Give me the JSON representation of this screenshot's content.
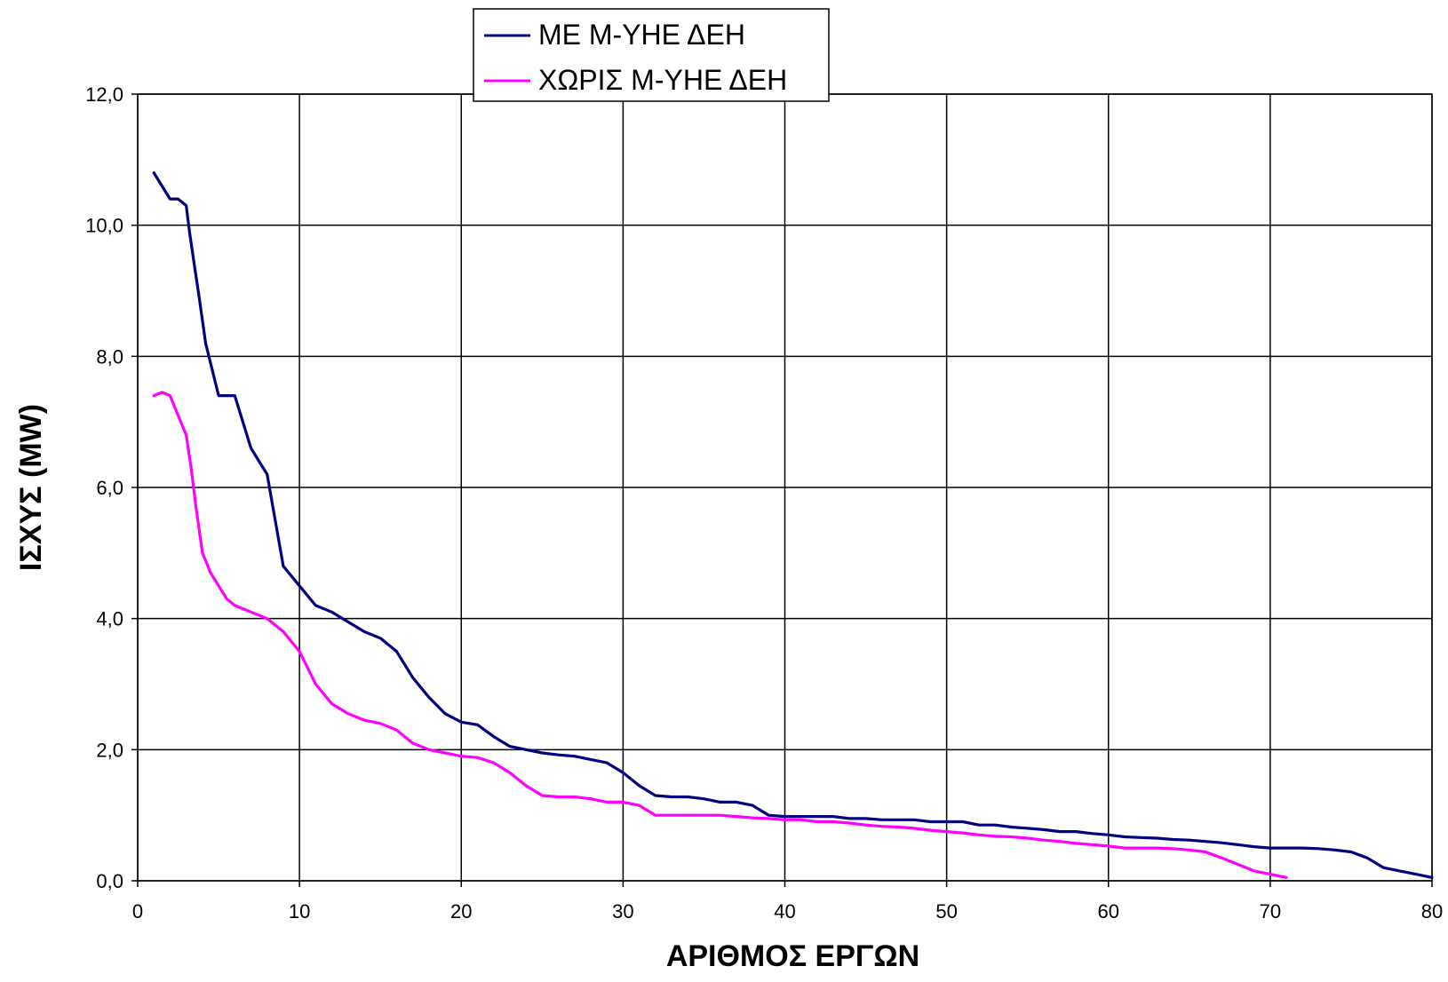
{
  "chart_data": {
    "type": "line",
    "title": "",
    "xlabel": "ΑΡΙΘΜΟΣ ΕΡΓΩΝ",
    "ylabel": "ΙΣΧΥΣ (MW)",
    "xlim": [
      0,
      80
    ],
    "ylim": [
      0,
      12
    ],
    "xticks": [
      0,
      10,
      20,
      30,
      40,
      50,
      60,
      70,
      80
    ],
    "xtick_labels": [
      "0",
      "10",
      "20",
      "30",
      "40",
      "50",
      "60",
      "70",
      "80"
    ],
    "yticks": [
      0,
      2,
      4,
      6,
      8,
      10,
      12
    ],
    "ytick_labels": [
      "0,0",
      "2,0",
      "4,0",
      "6,0",
      "8,0",
      "10,0",
      "12,0"
    ],
    "grid": true,
    "legend_position": "top",
    "series": [
      {
        "name": "ΜΕ Μ-ΥΗΕ ΔΕΗ",
        "color": "#000080",
        "points": [
          [
            1,
            10.8
          ],
          [
            1.5,
            10.6
          ],
          [
            2,
            10.4
          ],
          [
            2.5,
            10.4
          ],
          [
            3,
            10.3
          ],
          [
            3.2,
            9.9
          ],
          [
            3.5,
            9.4
          ],
          [
            3.8,
            8.9
          ],
          [
            4.2,
            8.2
          ],
          [
            4.6,
            7.8
          ],
          [
            5,
            7.4
          ],
          [
            5.5,
            7.4
          ],
          [
            6,
            7.4
          ],
          [
            6.5,
            7.0
          ],
          [
            7,
            6.6
          ],
          [
            7.5,
            6.4
          ],
          [
            8,
            6.2
          ],
          [
            8.5,
            5.5
          ],
          [
            9,
            4.8
          ],
          [
            10,
            4.5
          ],
          [
            11,
            4.2
          ],
          [
            12,
            4.1
          ],
          [
            13,
            3.95
          ],
          [
            14,
            3.8
          ],
          [
            15,
            3.7
          ],
          [
            16,
            3.5
          ],
          [
            17,
            3.1
          ],
          [
            18,
            2.8
          ],
          [
            19,
            2.55
          ],
          [
            20,
            2.42
          ],
          [
            21,
            2.38
          ],
          [
            22,
            2.2
          ],
          [
            23,
            2.05
          ],
          [
            24,
            2.0
          ],
          [
            25,
            1.95
          ],
          [
            26,
            1.92
          ],
          [
            27,
            1.9
          ],
          [
            28,
            1.85
          ],
          [
            29,
            1.8
          ],
          [
            30,
            1.65
          ],
          [
            31,
            1.45
          ],
          [
            32,
            1.3
          ],
          [
            33,
            1.28
          ],
          [
            34,
            1.28
          ],
          [
            35,
            1.25
          ],
          [
            36,
            1.2
          ],
          [
            37,
            1.2
          ],
          [
            38,
            1.15
          ],
          [
            39,
            1.0
          ],
          [
            40,
            0.98
          ],
          [
            41,
            0.98
          ],
          [
            42,
            0.98
          ],
          [
            43,
            0.98
          ],
          [
            44,
            0.95
          ],
          [
            45,
            0.95
          ],
          [
            46,
            0.93
          ],
          [
            47,
            0.93
          ],
          [
            48,
            0.93
          ],
          [
            49,
            0.9
          ],
          [
            50,
            0.9
          ],
          [
            51,
            0.9
          ],
          [
            52,
            0.85
          ],
          [
            53,
            0.85
          ],
          [
            54,
            0.82
          ],
          [
            55,
            0.8
          ],
          [
            56,
            0.78
          ],
          [
            57,
            0.75
          ],
          [
            58,
            0.75
          ],
          [
            59,
            0.72
          ],
          [
            60,
            0.7
          ],
          [
            61,
            0.67
          ],
          [
            62,
            0.66
          ],
          [
            63,
            0.65
          ],
          [
            64,
            0.63
          ],
          [
            65,
            0.62
          ],
          [
            66,
            0.6
          ],
          [
            67,
            0.58
          ],
          [
            68,
            0.55
          ],
          [
            69,
            0.52
          ],
          [
            70,
            0.5
          ],
          [
            71,
            0.5
          ],
          [
            72,
            0.5
          ],
          [
            73,
            0.49
          ],
          [
            74,
            0.47
          ],
          [
            75,
            0.44
          ],
          [
            76,
            0.35
          ],
          [
            77,
            0.2
          ],
          [
            78,
            0.15
          ],
          [
            79,
            0.1
          ],
          [
            80,
            0.05
          ]
        ]
      },
      {
        "name": "ΧΩΡΙΣ Μ-ΥΗΕ ΔΕΗ",
        "color": "#ff00ff",
        "points": [
          [
            1,
            7.4
          ],
          [
            1.5,
            7.45
          ],
          [
            2,
            7.4
          ],
          [
            2.5,
            7.1
          ],
          [
            3,
            6.8
          ],
          [
            3.3,
            6.3
          ],
          [
            3.6,
            5.7
          ],
          [
            4,
            5.0
          ],
          [
            4.5,
            4.7
          ],
          [
            5,
            4.5
          ],
          [
            5.5,
            4.3
          ],
          [
            6,
            4.2
          ],
          [
            7,
            4.1
          ],
          [
            8,
            4.0
          ],
          [
            9,
            3.8
          ],
          [
            10,
            3.5
          ],
          [
            11,
            3.0
          ],
          [
            12,
            2.7
          ],
          [
            13,
            2.55
          ],
          [
            14,
            2.45
          ],
          [
            15,
            2.4
          ],
          [
            16,
            2.3
          ],
          [
            17,
            2.1
          ],
          [
            18,
            2.0
          ],
          [
            19,
            1.95
          ],
          [
            20,
            1.9
          ],
          [
            21,
            1.88
          ],
          [
            22,
            1.8
          ],
          [
            23,
            1.65
          ],
          [
            24,
            1.45
          ],
          [
            25,
            1.3
          ],
          [
            26,
            1.28
          ],
          [
            27,
            1.28
          ],
          [
            28,
            1.25
          ],
          [
            29,
            1.2
          ],
          [
            30,
            1.2
          ],
          [
            31,
            1.15
          ],
          [
            32,
            1.0
          ],
          [
            33,
            1.0
          ],
          [
            34,
            1.0
          ],
          [
            35,
            1.0
          ],
          [
            36,
            1.0
          ],
          [
            37,
            0.98
          ],
          [
            38,
            0.96
          ],
          [
            39,
            0.95
          ],
          [
            40,
            0.93
          ],
          [
            41,
            0.93
          ],
          [
            42,
            0.9
          ],
          [
            43,
            0.9
          ],
          [
            44,
            0.88
          ],
          [
            45,
            0.85
          ],
          [
            46,
            0.83
          ],
          [
            47,
            0.82
          ],
          [
            48,
            0.8
          ],
          [
            49,
            0.77
          ],
          [
            50,
            0.75
          ],
          [
            51,
            0.73
          ],
          [
            52,
            0.7
          ],
          [
            53,
            0.68
          ],
          [
            54,
            0.67
          ],
          [
            55,
            0.65
          ],
          [
            56,
            0.62
          ],
          [
            57,
            0.6
          ],
          [
            58,
            0.57
          ],
          [
            59,
            0.55
          ],
          [
            60,
            0.53
          ],
          [
            61,
            0.5
          ],
          [
            62,
            0.5
          ],
          [
            63,
            0.5
          ],
          [
            64,
            0.49
          ],
          [
            65,
            0.47
          ],
          [
            66,
            0.44
          ],
          [
            67,
            0.35
          ],
          [
            68,
            0.25
          ],
          [
            69,
            0.15
          ],
          [
            70,
            0.1
          ],
          [
            71,
            0.05
          ]
        ]
      }
    ]
  }
}
